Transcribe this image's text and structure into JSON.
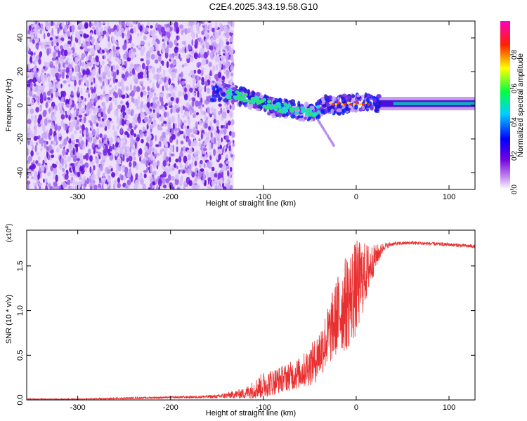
{
  "title": "C2E4.2025.343.19.58.G10",
  "chart_data": [
    {
      "type": "heatmap",
      "title": "C2E4.2025.343.19.58.G10",
      "xlabel": "Height of straight line (km)",
      "ylabel": "Frequency (Hz)",
      "xlim": [
        -355,
        128
      ],
      "ylim": [
        -50,
        50
      ],
      "x_ticks": [
        -300,
        -200,
        -100,
        0,
        100
      ],
      "x_tick_labels": [
        "-300",
        "-200",
        "-100",
        "0",
        "100"
      ],
      "y_ticks": [
        -40,
        -20,
        0,
        20,
        40
      ],
      "y_tick_labels": [
        "-40",
        "-20",
        "0",
        "20",
        "40"
      ],
      "noise_region_x": [
        -355,
        -132
      ],
      "signal_ridge": {
        "x": [
          -150,
          -130,
          -110,
          -90,
          -75,
          -60,
          -45,
          -35,
          -25,
          -10,
          0,
          20,
          60,
          128
        ],
        "y": [
          8,
          6,
          3,
          -1,
          -2,
          -4,
          -4,
          0,
          0,
          1,
          1,
          1,
          1,
          1
        ]
      },
      "colorbar": {
        "label": "Normalized spectral amplitude",
        "range": [
          0.0,
          1.0
        ],
        "ticks": [
          0.0,
          0.2,
          0.4,
          0.6,
          0.8
        ],
        "tick_labels": [
          "0.0",
          "0.2",
          "0.4",
          "0.6",
          "0.8"
        ],
        "colormap": [
          "#ffffff",
          "#a020f0",
          "#0000ff",
          "#00ffff",
          "#00ff00",
          "#ffff00",
          "#ff0000",
          "#ff00ff"
        ]
      }
    },
    {
      "type": "line",
      "xlabel": "Height of straight line (km)",
      "ylabel": "SNR (10 * v/v)",
      "y_multiplier_label": "(x10",
      "y_multiplier_exp": "4",
      "y_multiplier_close": ")",
      "xlim": [
        -355,
        128
      ],
      "ylim": [
        0,
        1.9
      ],
      "x_ticks": [
        -300,
        -200,
        -100,
        0,
        100
      ],
      "x_tick_labels": [
        "-300",
        "-200",
        "-100",
        "0",
        "100"
      ],
      "y_ticks": [
        0,
        0.5,
        1.0,
        1.5
      ],
      "y_tick_labels": [
        "0.0",
        "0.5",
        "1.0",
        "1.5"
      ],
      "color": "#e83030",
      "series": [
        {
          "name": "SNR",
          "x": [
            -355,
            -300,
            -250,
            -200,
            -150,
            -120,
            -100,
            -80,
            -60,
            -45,
            -30,
            -20,
            -10,
            0,
            10,
            20,
            30,
            40,
            60,
            80,
            100,
            128
          ],
          "y": [
            0.01,
            0.01,
            0.02,
            0.03,
            0.04,
            0.08,
            0.18,
            0.25,
            0.32,
            0.45,
            0.75,
            1.0,
            1.15,
            1.3,
            1.45,
            1.6,
            1.72,
            1.75,
            1.76,
            1.75,
            1.74,
            1.72
          ],
          "spread": [
            0.005,
            0.005,
            0.01,
            0.01,
            0.02,
            0.06,
            0.15,
            0.15,
            0.18,
            0.25,
            0.35,
            0.45,
            0.55,
            0.55,
            0.35,
            0.15,
            0.04,
            0.02,
            0.02,
            0.02,
            0.02,
            0.02
          ]
        }
      ]
    }
  ]
}
